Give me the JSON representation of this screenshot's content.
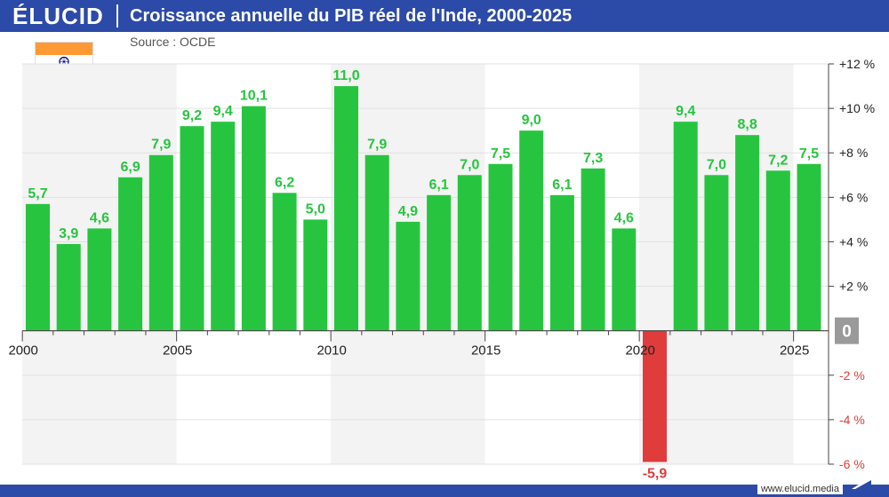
{
  "header": {
    "logo": "ÉLUCID",
    "title": "Croissance annuelle du PIB réel de l'Inde, 2000-2025"
  },
  "source": "Source : OCDE",
  "website": "www.elucid.media",
  "colors": {
    "header_bg": "#2c4aa7",
    "positive_bar": "#27c53f",
    "negative_bar": "#e03c3c",
    "positive_label": "#27c53f",
    "negative_label": "#e03c3c",
    "zero_badge": "#9a9a9a",
    "band": "#f3f3f3"
  },
  "chart_data": {
    "type": "bar",
    "title": "Croissance annuelle du PIB réel de l'Inde, 2000-2025",
    "categories": [
      "2000",
      "2001",
      "2002",
      "2003",
      "2004",
      "2005",
      "2006",
      "2007",
      "2008",
      "2009",
      "2010",
      "2011",
      "2012",
      "2013",
      "2014",
      "2015",
      "2016",
      "2017",
      "2018",
      "2019",
      "2020",
      "2021",
      "2022",
      "2023",
      "2024",
      "2025"
    ],
    "values": [
      5.7,
      3.9,
      4.6,
      6.9,
      7.9,
      9.2,
      9.4,
      10.1,
      6.2,
      5.0,
      11.0,
      7.9,
      4.9,
      6.1,
      7.0,
      7.5,
      9.0,
      6.1,
      7.3,
      4.6,
      -5.9,
      9.4,
      7.0,
      8.8,
      7.2,
      7.5
    ],
    "value_labels": [
      "5,7",
      "3,9",
      "4,6",
      "6,9",
      "7,9",
      "9,2",
      "9,4",
      "10,1",
      "6,2",
      "5,0",
      "11,0",
      "7,9",
      "4,9",
      "6,1",
      "7,0",
      "7,5",
      "9,0",
      "6,1",
      "7,3",
      "4,6",
      "-5,9",
      "9,4",
      "7,0",
      "8,8",
      "7,2",
      "7,5"
    ],
    "x_ticks": [
      "2000",
      "2005",
      "2010",
      "2015",
      "2020",
      "2025"
    ],
    "y_ticks": [
      {
        "value": 12,
        "label": "+12 %"
      },
      {
        "value": 10,
        "label": "+10 %"
      },
      {
        "value": 8,
        "label": "+8 %"
      },
      {
        "value": 6,
        "label": "+6 %"
      },
      {
        "value": 4,
        "label": "+4 %"
      },
      {
        "value": 2,
        "label": "+2 %"
      },
      {
        "value": 0,
        "label": "0"
      },
      {
        "value": -2,
        "label": "-2 %"
      },
      {
        "value": -4,
        "label": "-4 %"
      },
      {
        "value": -6,
        "label": "-6 %"
      }
    ],
    "ylim": [
      -6,
      12
    ],
    "grid": true,
    "y_axis_side": "right",
    "shaded_bands": [
      [
        "2000",
        "2004"
      ],
      [
        "2010",
        "2014"
      ],
      [
        "2020",
        "2024"
      ]
    ]
  }
}
